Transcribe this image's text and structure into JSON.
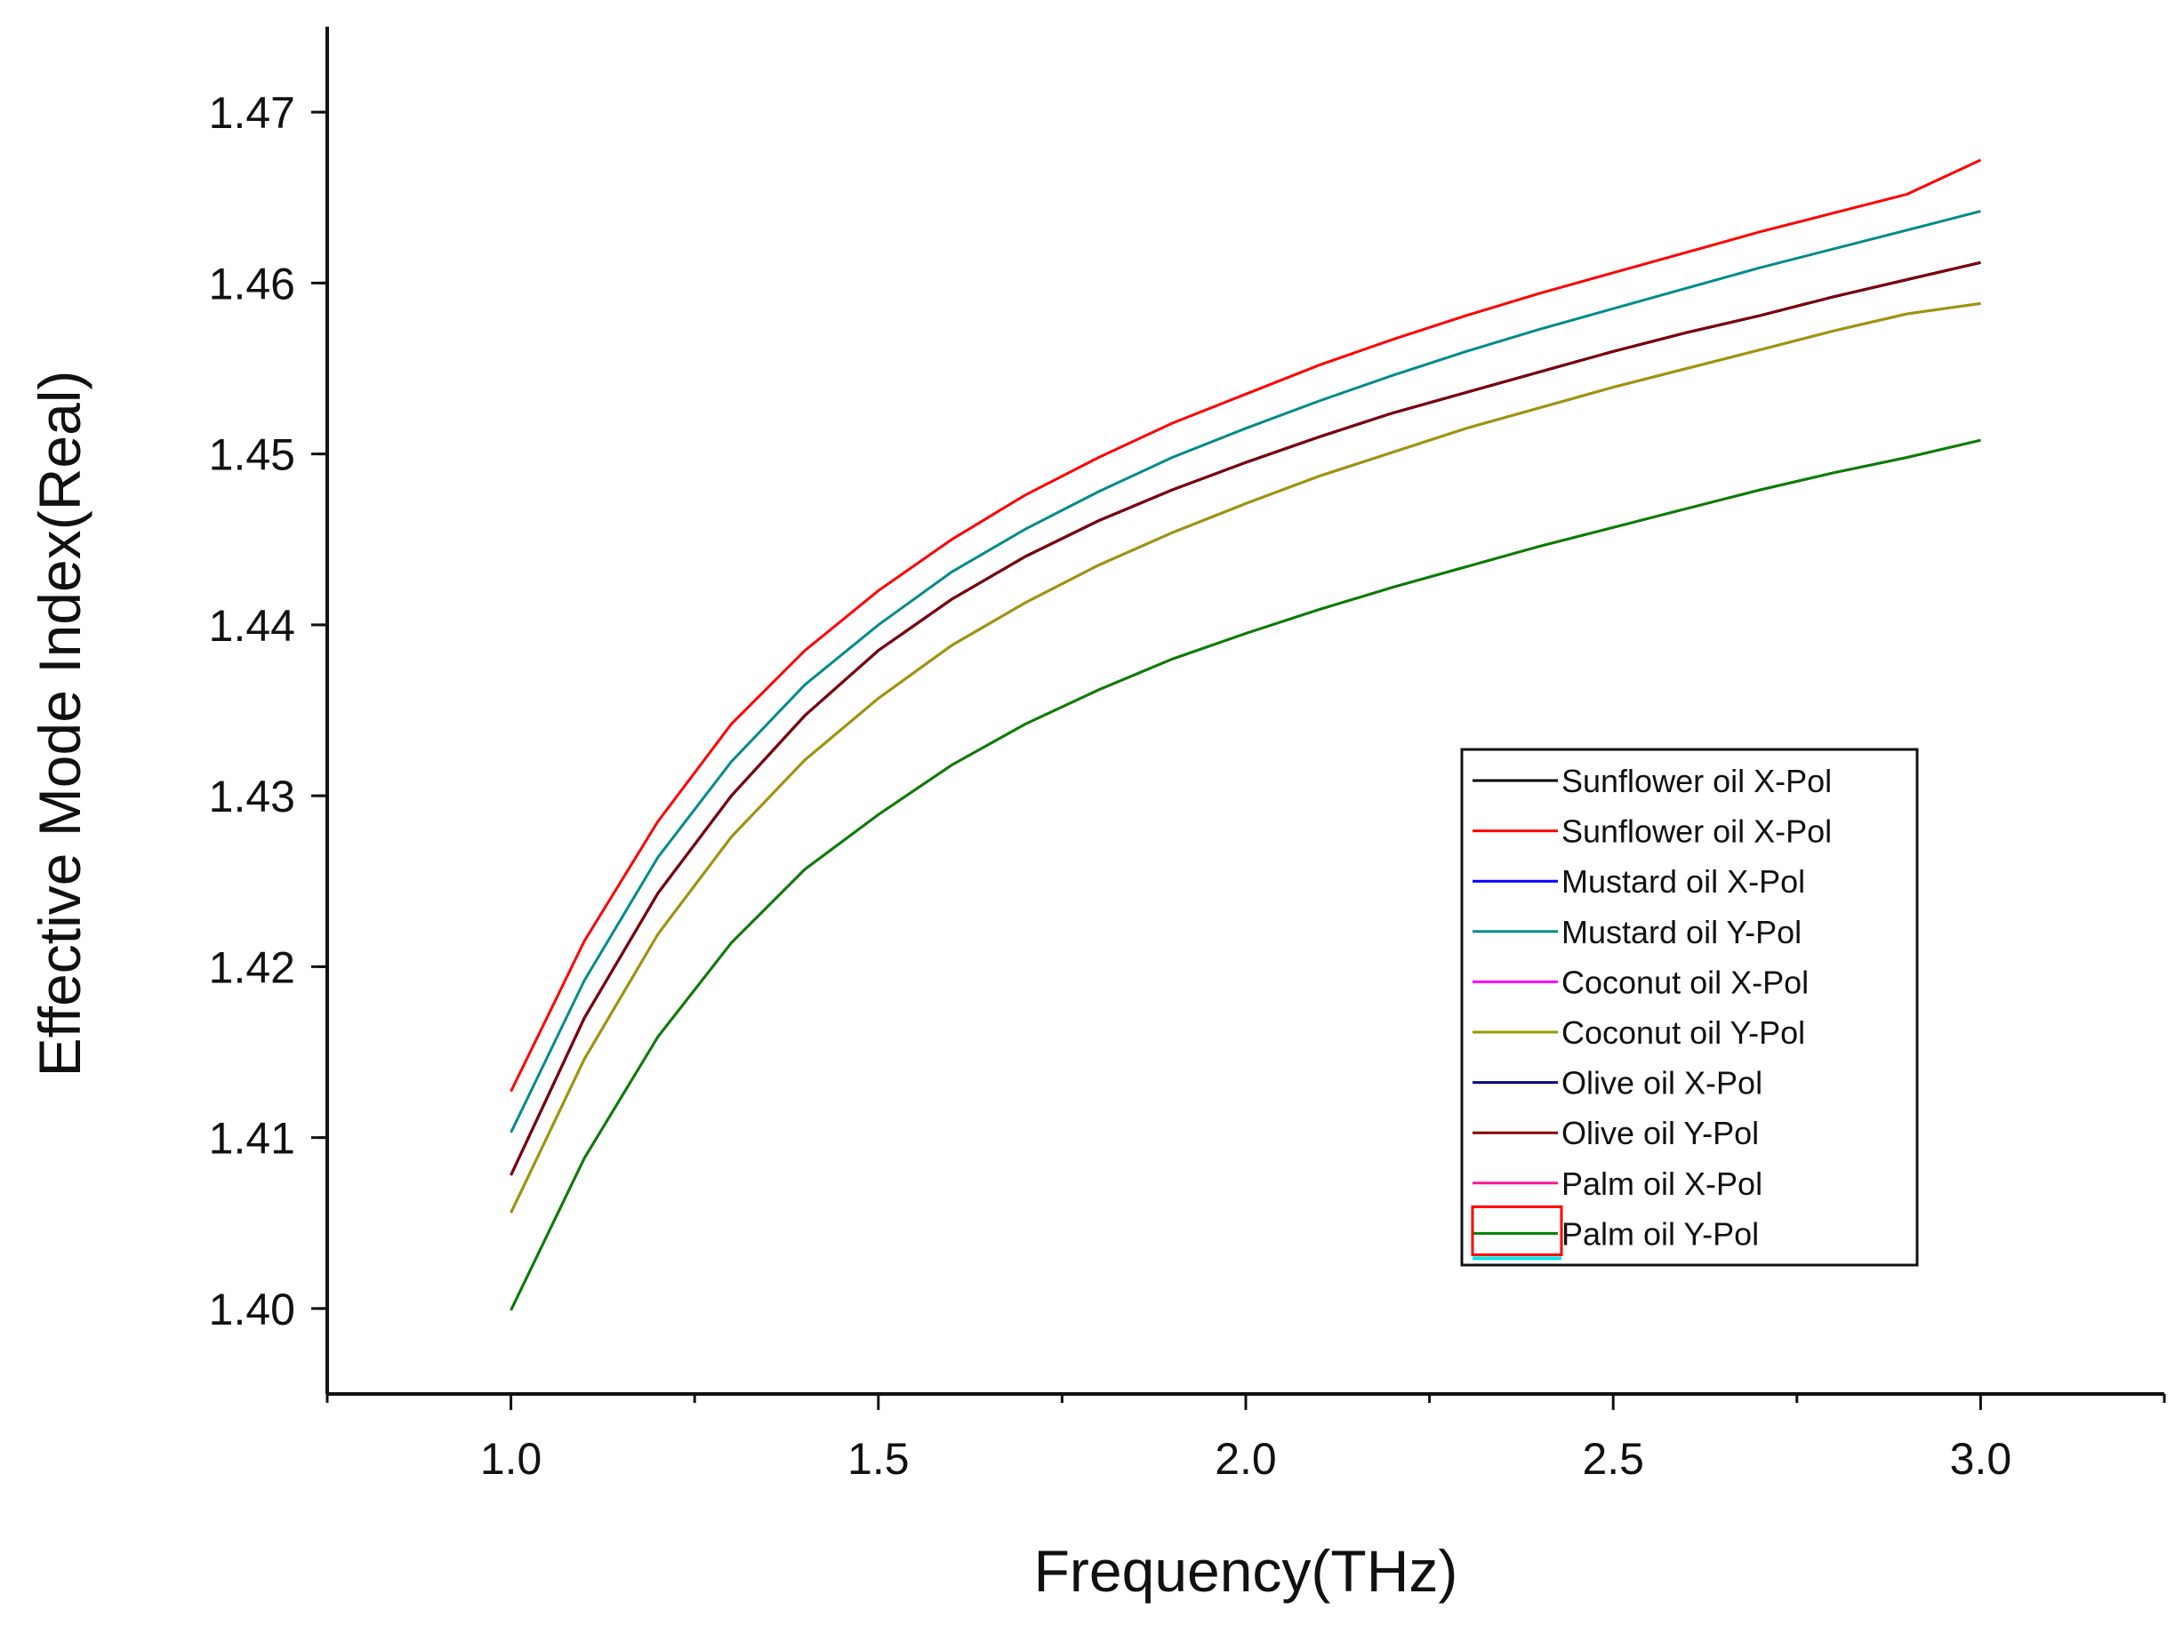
{
  "chart_data": {
    "type": "line",
    "title": "",
    "xlabel": "Frequency(THz)",
    "ylabel": "Effective Mode Index(Real)",
    "xlim": [
      0.75,
      3.25
    ],
    "ylim": [
      1.395,
      1.475
    ],
    "x_ticks": [
      "1.0",
      "1.5",
      "2.0",
      "2.5",
      "3.0"
    ],
    "y_ticks": [
      "1.40",
      "1.41",
      "1.42",
      "1.43",
      "1.44",
      "1.45",
      "1.46",
      "1.47"
    ],
    "grid": false,
    "legend_position": "lower-right",
    "x": [
      1.0,
      1.1,
      1.2,
      1.3,
      1.4,
      1.5,
      1.6,
      1.7,
      1.8,
      1.9,
      2.0,
      2.1,
      2.2,
      2.3,
      2.4,
      2.5,
      2.6,
      2.7,
      2.8,
      2.9,
      3.0
    ],
    "series": [
      {
        "name": "Sunflower oil X-Pol",
        "color": "#000000",
        "values": [
          1.4078,
          1.417,
          1.4243,
          1.43,
          1.4347,
          1.4385,
          1.4415,
          1.444,
          1.4461,
          1.4479,
          1.4495,
          1.451,
          1.4524,
          1.4536,
          1.4548,
          1.456,
          1.4571,
          1.4581,
          1.4592,
          1.4602,
          1.4612
        ]
      },
      {
        "name": "Sunflower oil X-Pol",
        "color": "#ff0000",
        "values": [
          1.4127,
          1.4215,
          1.4285,
          1.4342,
          1.4385,
          1.442,
          1.445,
          1.4476,
          1.4498,
          1.4518,
          1.4535,
          1.4552,
          1.4567,
          1.4581,
          1.4594,
          1.4606,
          1.4618,
          1.463,
          1.4641,
          1.4652,
          1.4672
        ]
      },
      {
        "name": "Mustard oil X-Pol",
        "color": "#0000ff",
        "values": [
          1.4078,
          1.417,
          1.4243,
          1.43,
          1.4347,
          1.4385,
          1.4415,
          1.444,
          1.4461,
          1.4479,
          1.4495,
          1.451,
          1.4524,
          1.4536,
          1.4548,
          1.456,
          1.4571,
          1.4581,
          1.4592,
          1.4602,
          1.4612
        ]
      },
      {
        "name": "Mustard oil Y-Pol",
        "color": "#008b8b",
        "values": [
          1.4103,
          1.4192,
          1.4264,
          1.432,
          1.4365,
          1.44,
          1.4431,
          1.4456,
          1.4478,
          1.4498,
          1.4515,
          1.4531,
          1.4546,
          1.456,
          1.4573,
          1.4585,
          1.4597,
          1.4609,
          1.462,
          1.4631,
          1.4642
        ]
      },
      {
        "name": "Coconut oil X-Pol",
        "color": "#ff00ff",
        "values": [
          1.4056,
          1.4146,
          1.4219,
          1.4276,
          1.4321,
          1.4357,
          1.4388,
          1.4413,
          1.4435,
          1.4454,
          1.4471,
          1.4487,
          1.4501,
          1.4515,
          1.4527,
          1.4539,
          1.455,
          1.4561,
          1.4572,
          1.4582,
          1.4588
        ]
      },
      {
        "name": "Coconut oil Y-Pol",
        "color": "#999900",
        "values": [
          1.4056,
          1.4146,
          1.4219,
          1.4276,
          1.4321,
          1.4357,
          1.4388,
          1.4413,
          1.4435,
          1.4454,
          1.4471,
          1.4487,
          1.4501,
          1.4515,
          1.4527,
          1.4539,
          1.455,
          1.4561,
          1.4572,
          1.4582,
          1.4588
        ]
      },
      {
        "name": "Olive oil X-Pol",
        "color": "#000080",
        "values": [
          1.4078,
          1.417,
          1.4243,
          1.43,
          1.4347,
          1.4385,
          1.4415,
          1.444,
          1.4461,
          1.4479,
          1.4495,
          1.451,
          1.4524,
          1.4536,
          1.4548,
          1.456,
          1.4571,
          1.4581,
          1.4592,
          1.4602,
          1.4612
        ]
      },
      {
        "name": "Olive oil Y-Pol",
        "color": "#800000",
        "values": [
          1.4078,
          1.417,
          1.4243,
          1.43,
          1.4347,
          1.4385,
          1.4415,
          1.444,
          1.4461,
          1.4479,
          1.4495,
          1.451,
          1.4524,
          1.4536,
          1.4548,
          1.456,
          1.4571,
          1.4581,
          1.4592,
          1.4602,
          1.4612
        ]
      },
      {
        "name": "Palm oil X-Pol",
        "color": "#ff1493",
        "values": [
          1.3999,
          1.4088,
          1.4159,
          1.4214,
          1.4257,
          1.4289,
          1.4318,
          1.4342,
          1.4362,
          1.438,
          1.4395,
          1.4409,
          1.4422,
          1.4434,
          1.4446,
          1.4457,
          1.4468,
          1.4479,
          1.4489,
          1.4498,
          1.4508
        ]
      },
      {
        "name": "Palm oil Y-Pol",
        "color": "#008000",
        "values": [
          1.3999,
          1.4088,
          1.4159,
          1.4214,
          1.4257,
          1.4289,
          1.4318,
          1.4342,
          1.4362,
          1.438,
          1.4395,
          1.4409,
          1.4422,
          1.4434,
          1.4446,
          1.4457,
          1.4468,
          1.4479,
          1.4489,
          1.4498,
          1.4508
        ]
      }
    ],
    "legend_extra_swatches": [
      {
        "type": "box",
        "color": "#ff0000"
      },
      {
        "type": "line",
        "color": "#00e5ee"
      }
    ]
  }
}
